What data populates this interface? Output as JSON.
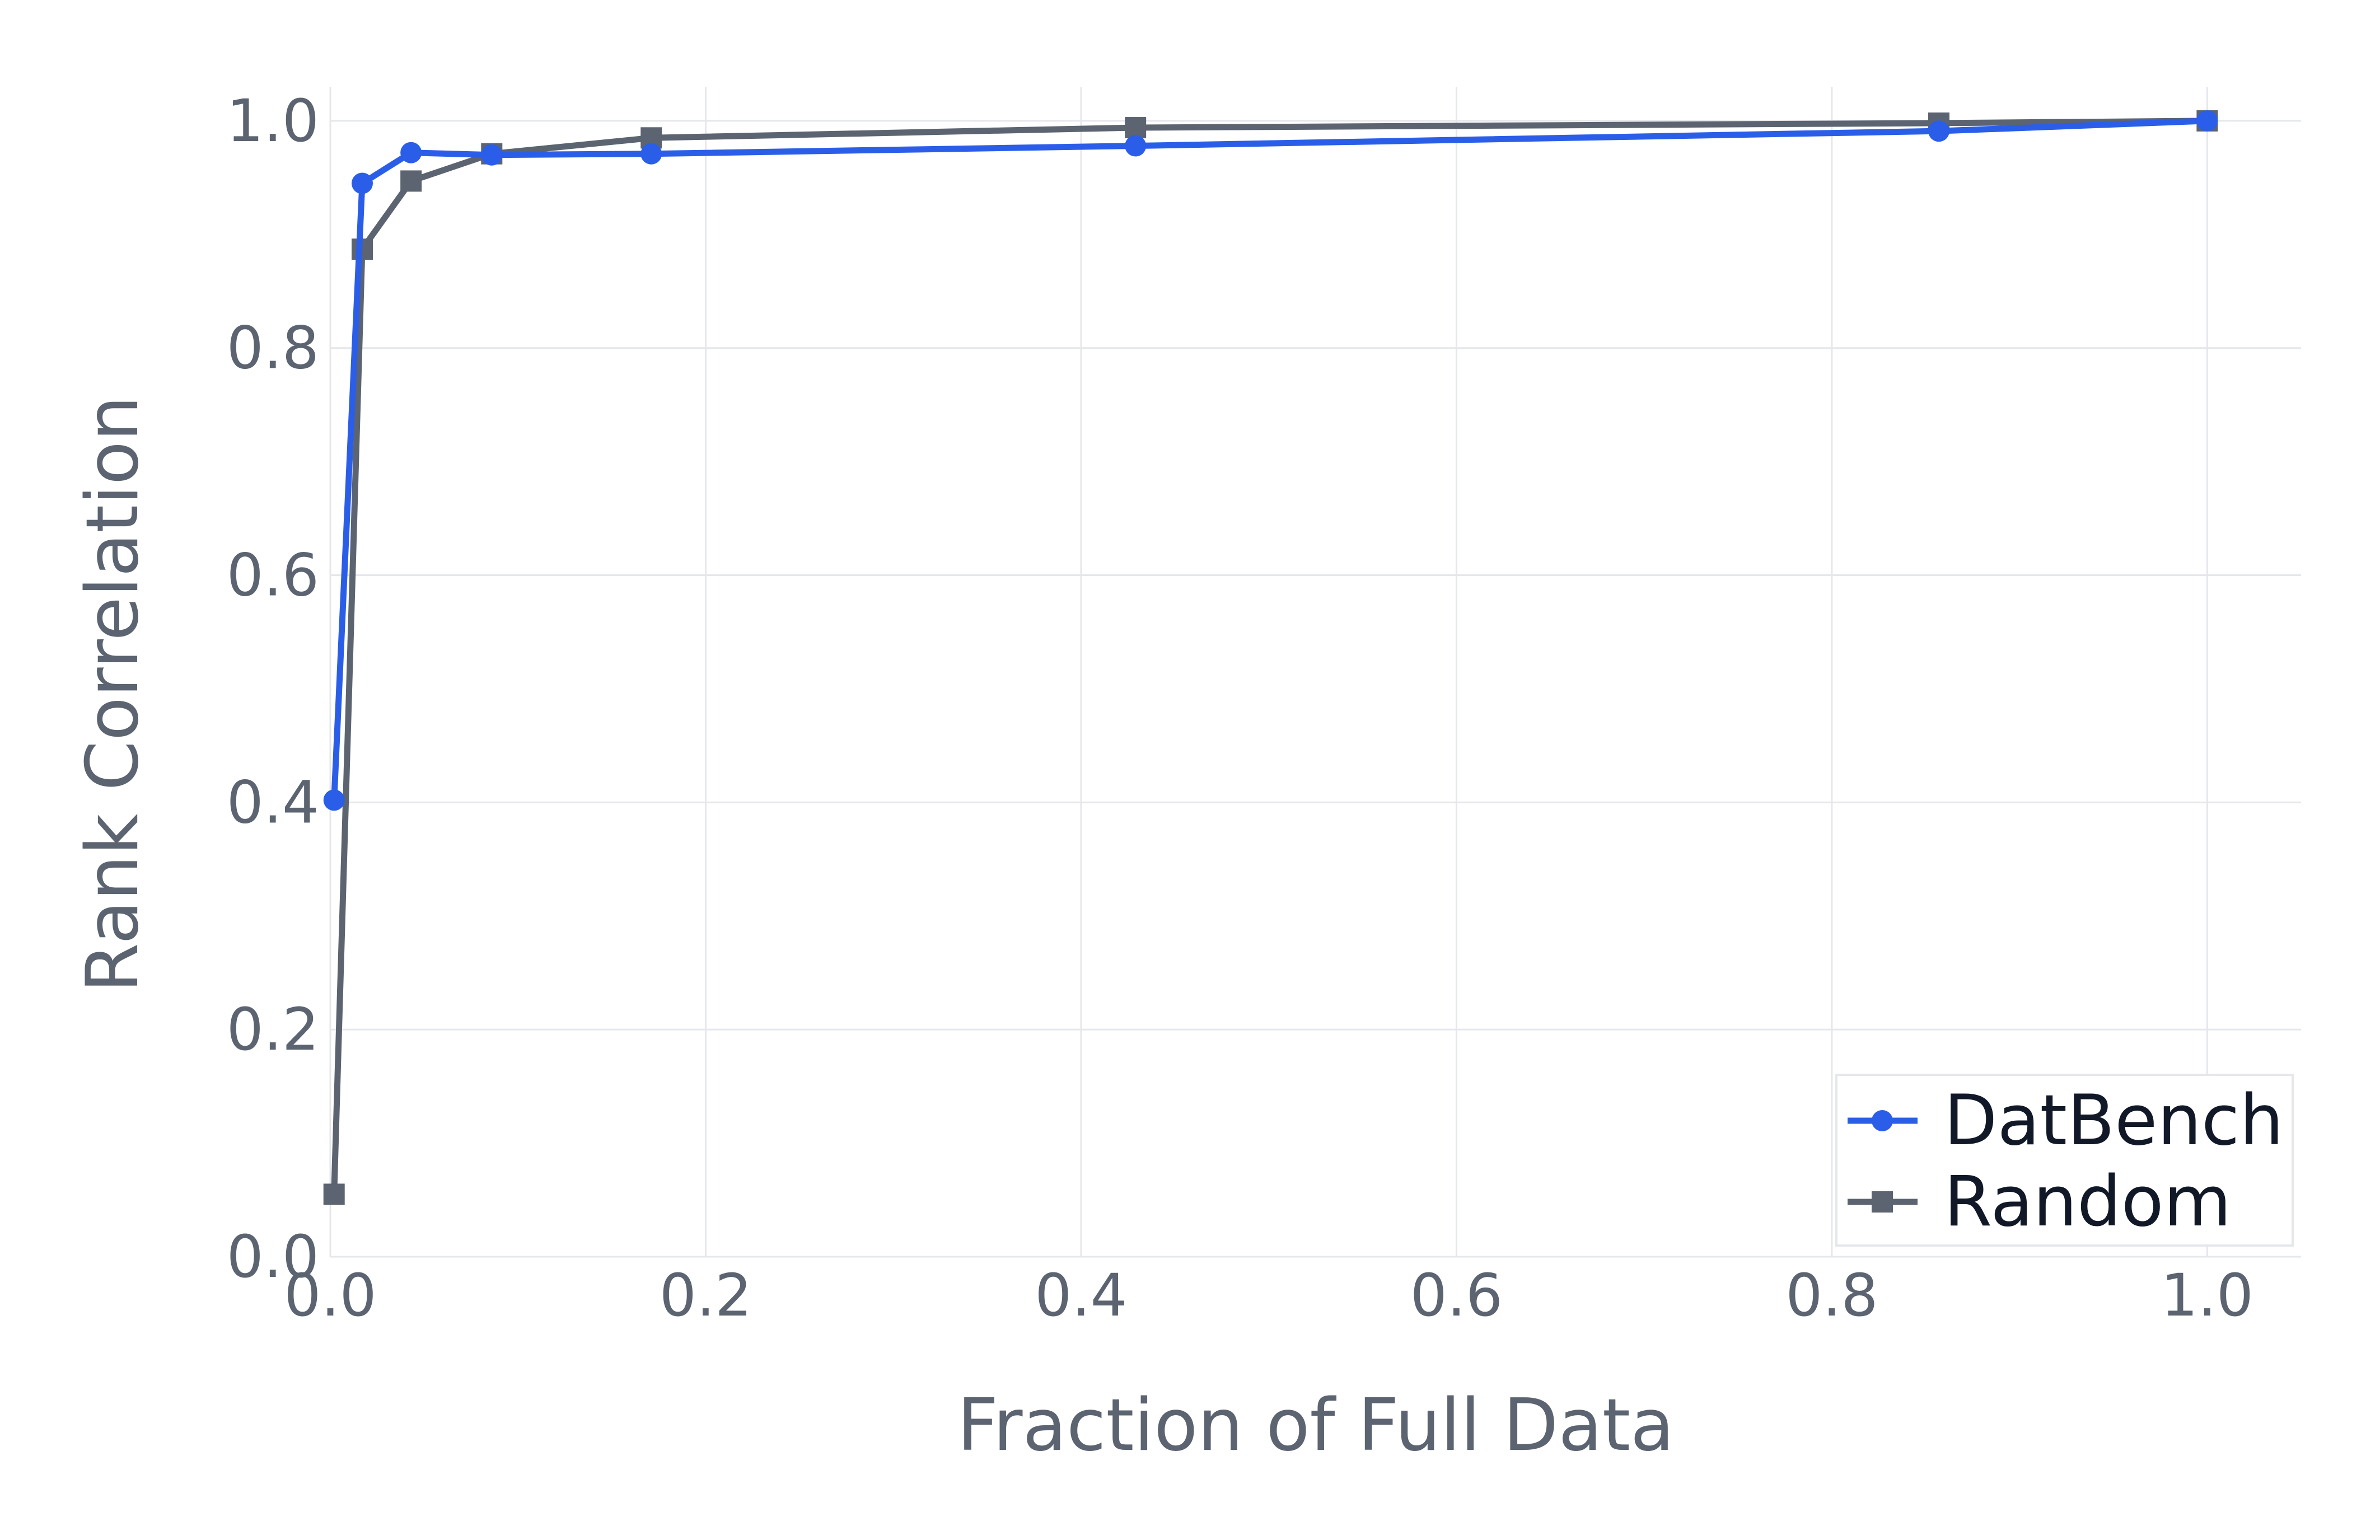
{
  "chart_data": {
    "type": "line",
    "title": "",
    "xlabel": "Fraction of Full Data",
    "ylabel": "Rank Correlation",
    "xlim": [
      0.0,
      1.05
    ],
    "ylim": [
      0.0,
      1.03
    ],
    "grid": true,
    "legend_position": "bottom-right",
    "x_ticks": [
      "0.0",
      "0.2",
      "0.4",
      "0.6",
      "0.8",
      "1.0"
    ],
    "y_ticks": [
      "0.0",
      "0.2",
      "0.4",
      "0.6",
      "0.8",
      "1.0"
    ],
    "series": [
      {
        "name": "DatBench",
        "color": "#2b5ee8",
        "marker": "circle",
        "x": [
          0.002,
          0.017,
          0.043,
          0.086,
          0.171,
          0.429,
          0.857,
          1.0
        ],
        "y": [
          0.402,
          0.945,
          0.972,
          0.97,
          0.971,
          0.978,
          0.991,
          1.0
        ]
      },
      {
        "name": "Random",
        "color": "#5b6470",
        "marker": "square",
        "x": [
          0.002,
          0.017,
          0.043,
          0.086,
          0.171,
          0.429,
          0.857,
          1.0
        ],
        "y": [
          0.055,
          0.887,
          0.947,
          0.971,
          0.985,
          0.994,
          0.998,
          1.0
        ]
      }
    ]
  }
}
